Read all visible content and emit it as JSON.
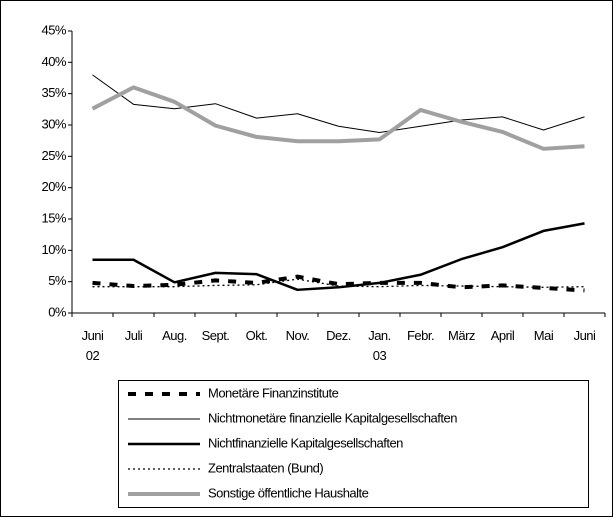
{
  "chart_data": {
    "type": "line",
    "categories": [
      "Juni 02",
      "Juli",
      "Aug.",
      "Sept.",
      "Okt.",
      "Nov.",
      "Dez.",
      "Jan. 03",
      "Febr.",
      "März",
      "April",
      "Mai",
      "Juni"
    ],
    "ylim": [
      0,
      45
    ],
    "yticks": [
      {
        "value": 0,
        "label": "0%"
      },
      {
        "value": 5,
        "label": "5%"
      },
      {
        "value": 10,
        "label": "10%"
      },
      {
        "value": 15,
        "label": "15%"
      },
      {
        "value": 20,
        "label": "20%"
      },
      {
        "value": 25,
        "label": "25%"
      },
      {
        "value": 30,
        "label": "30%"
      },
      {
        "value": 35,
        "label": "35%"
      },
      {
        "value": 40,
        "label": "40%"
      },
      {
        "value": 45,
        "label": "45%"
      }
    ],
    "grid": false,
    "series": [
      {
        "name": "Monetäre Finanzinstitute",
        "color": "#000000",
        "values": [
          4.8,
          4.3,
          4.5,
          5.2,
          4.8,
          5.8,
          4.6,
          4.8,
          4.8,
          4.1,
          4.4,
          4.0,
          3.6
        ]
      },
      {
        "name": "Nichtmonetäre finanzielle Kapitalgesellschaften",
        "color": "#000000",
        "values": [
          38.0,
          33.3,
          32.6,
          33.4,
          31.1,
          31.8,
          29.8,
          28.8,
          29.8,
          30.8,
          31.3,
          29.2,
          31.3
        ]
      },
      {
        "name": "Nichtfinanzielle Kapitalgesellschaften",
        "color": "#000000",
        "values": [
          8.5,
          8.5,
          4.9,
          6.4,
          6.2,
          3.7,
          4.1,
          4.8,
          6.1,
          8.6,
          10.5,
          13.1,
          14.3
        ]
      },
      {
        "name": "Zentralstaaten (Bund)",
        "color": "#000000",
        "values": [
          4.2,
          4.2,
          4.2,
          4.4,
          4.5,
          5.4,
          4.3,
          4.2,
          4.4,
          4.3,
          4.2,
          4.1,
          4.2
        ]
      },
      {
        "name": "Sonstige öffentliche Haushalte",
        "color": "#a0a0a0",
        "values": [
          32.6,
          36.0,
          33.7,
          29.9,
          28.1,
          27.4,
          27.4,
          27.7,
          32.4,
          30.5,
          28.9,
          26.2,
          26.6
        ]
      }
    ]
  }
}
